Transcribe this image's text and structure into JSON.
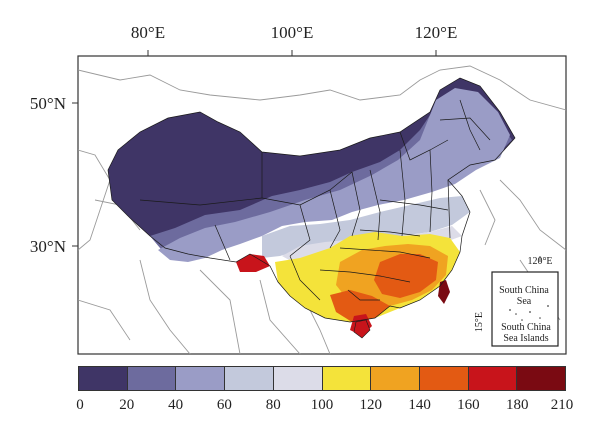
{
  "map": {
    "lon_labels": [
      "80°E",
      "100°E",
      "120°E"
    ],
    "lat_labels": [
      "50°N",
      "30°N"
    ],
    "inset": {
      "lon_label": "120°E",
      "lat_label": "15°E",
      "sea_label_1": "South China",
      "sea_label_2": "Sea",
      "islands_label_1": "South China",
      "islands_label_2": "Sea Islands"
    }
  },
  "legend": {
    "ticks": [
      "0",
      "20",
      "40",
      "60",
      "80",
      "100",
      "120",
      "140",
      "160",
      "180",
      "210"
    ],
    "colors": [
      "#3f3566",
      "#6d6b9e",
      "#9a9cc6",
      "#c3c9dc",
      "#dcdce8",
      "#f4e33a",
      "#f0a321",
      "#e35a13",
      "#c8141b",
      "#7a0a12"
    ]
  }
}
